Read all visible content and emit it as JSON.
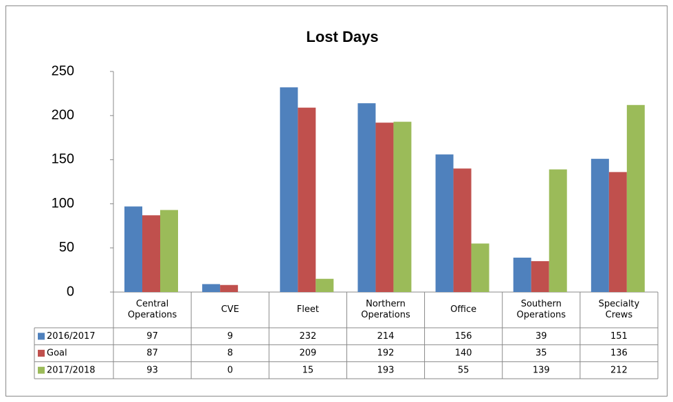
{
  "chart_data": {
    "type": "bar",
    "title": "Lost Days",
    "categories": [
      "Central Operations",
      "CVE",
      "Fleet",
      "Northern Operations",
      "Office",
      "Southern Operations",
      "Specialty Crews"
    ],
    "series": [
      {
        "name": "2016/2017",
        "color": "#4f81bd",
        "values": [
          97,
          9,
          232,
          214,
          156,
          39,
          151
        ]
      },
      {
        "name": "Goal",
        "color": "#c0504d",
        "values": [
          87,
          8,
          209,
          192,
          140,
          35,
          136
        ]
      },
      {
        "name": "2017/2018",
        "color": "#9bbb59",
        "values": [
          93,
          0,
          15,
          193,
          55,
          139,
          212
        ]
      }
    ],
    "ylim": [
      0,
      250
    ],
    "yticks": [
      0,
      50,
      100,
      150,
      200,
      250
    ],
    "grid": false
  }
}
